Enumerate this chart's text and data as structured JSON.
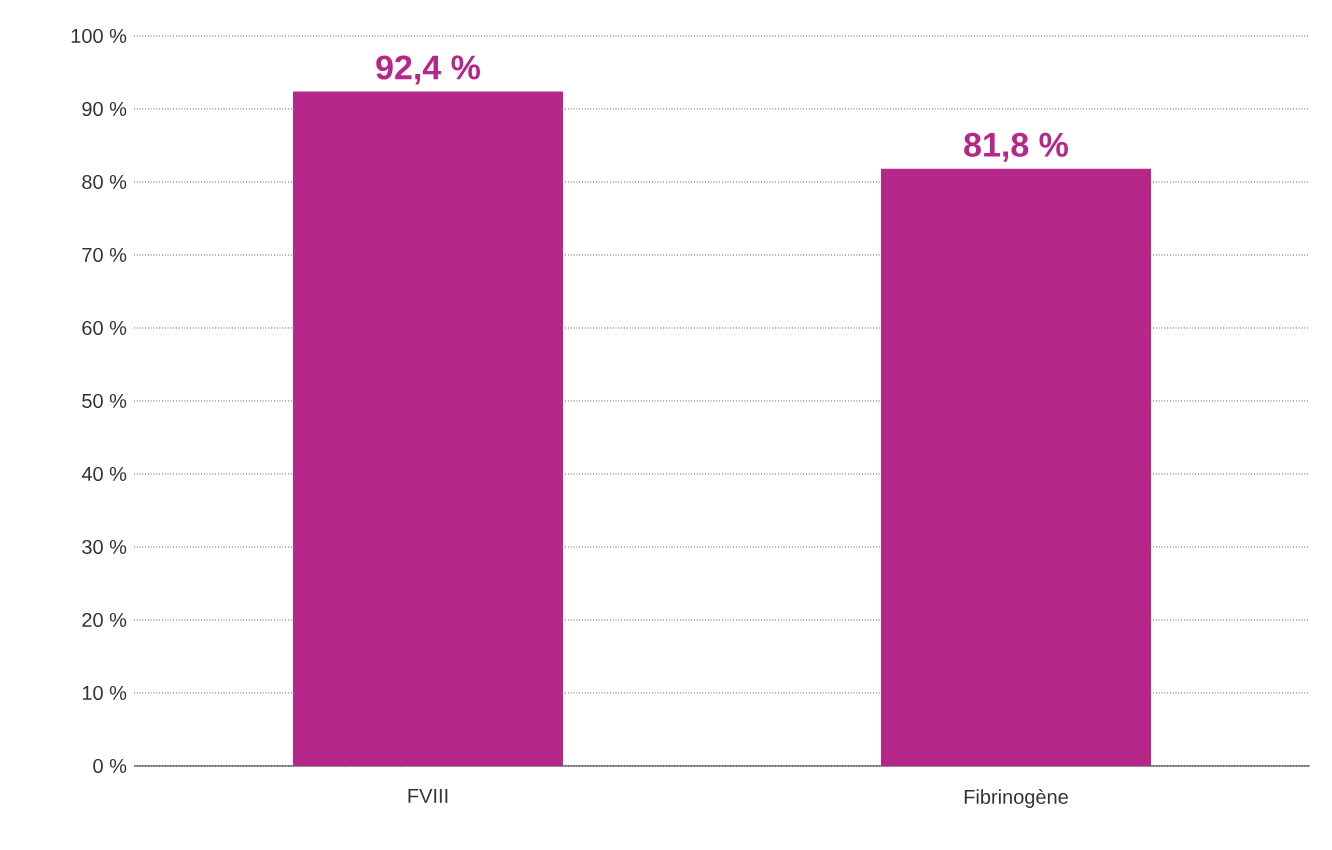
{
  "chart_data": {
    "type": "bar",
    "categories": [
      "FVIII",
      "Fibrinogène"
    ],
    "values": [
      92.4,
      81.8
    ],
    "value_labels": [
      "92,4 %",
      "81,8 %"
    ],
    "color": "#b5288a",
    "ylim": [
      0,
      100
    ],
    "yticks": [
      {
        "value": 0,
        "label": "0 %"
      },
      {
        "value": 10,
        "label": "10 %"
      },
      {
        "value": 20,
        "label": "20 %"
      },
      {
        "value": 30,
        "label": "30 %"
      },
      {
        "value": 40,
        "label": "40 %"
      },
      {
        "value": 50,
        "label": "50 %"
      },
      {
        "value": 60,
        "label": "60 %"
      },
      {
        "value": 70,
        "label": "70 %"
      },
      {
        "value": 80,
        "label": "80 %"
      },
      {
        "value": 90,
        "label": "90 %"
      },
      {
        "value": 100,
        "label": "100 %"
      }
    ],
    "grid": "y"
  }
}
